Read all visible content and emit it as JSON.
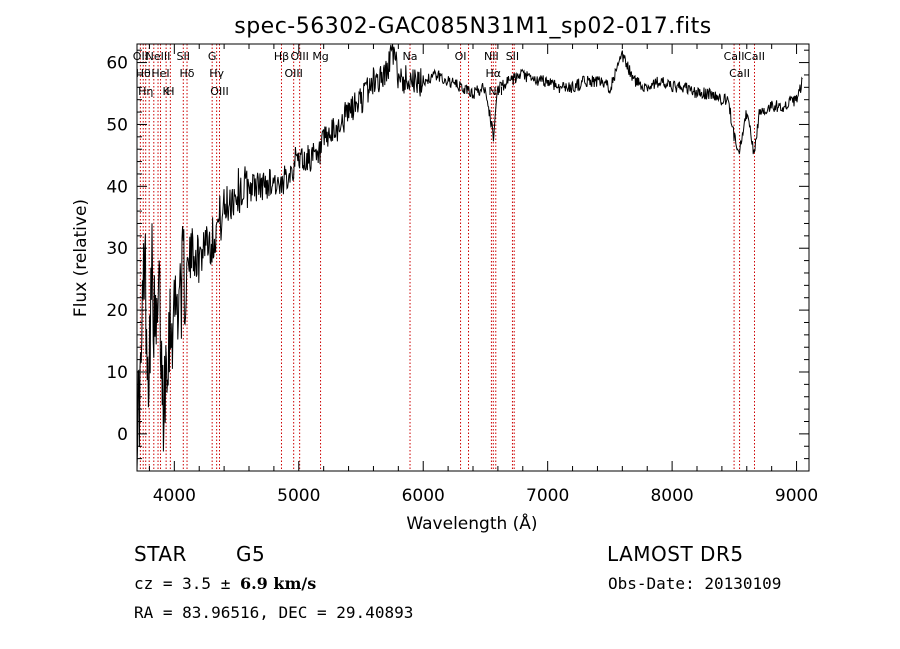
{
  "chart_data": {
    "type": "line",
    "title": "spec-56302-GAC085N31M1_sp02-017.fits",
    "xlabel": "Wavelength (Å)",
    "ylabel": "Flux (relative)",
    "xlim": [
      3700,
      9100
    ],
    "ylim": [
      -6,
      63
    ],
    "xticks": [
      4000,
      5000,
      6000,
      7000,
      8000,
      9000
    ],
    "yticks": [
      0,
      10,
      20,
      30,
      40,
      50,
      60
    ],
    "line_color": "#000000",
    "marker_color": "#cc0000",
    "series": [
      {
        "x": [
          3700,
          3730,
          3760,
          3790,
          3820,
          3850,
          3880,
          3910,
          3940,
          3970,
          4000,
          4050,
          4100,
          4150,
          4200,
          4250,
          4300,
          4350,
          4400,
          4450,
          4500,
          4600,
          4700,
          4800,
          4861,
          4900,
          4950,
          5000,
          5050,
          5100,
          5150,
          5200,
          5250,
          5300,
          5400,
          5500,
          5600,
          5700,
          5750,
          5800,
          5850,
          5900,
          5950,
          6000,
          6100,
          6200,
          6300,
          6400,
          6500,
          6563,
          6600,
          6700,
          6800,
          6900,
          7000,
          7100,
          7200,
          7300,
          7400,
          7500,
          7600,
          7700,
          7800,
          7900,
          8000,
          8100,
          8200,
          8300,
          8400,
          8450,
          8498,
          8542,
          8600,
          8662,
          8700,
          8800,
          8900,
          9000,
          9050
        ],
        "y": [
          2,
          8,
          30,
          10,
          26,
          14,
          22,
          4,
          15,
          18,
          20,
          24,
          26,
          30,
          28,
          32,
          31,
          34,
          36,
          38,
          39,
          40,
          40,
          41,
          39,
          42,
          43,
          45,
          44,
          45,
          44,
          47,
          48,
          49,
          52,
          54,
          57,
          58,
          62,
          58,
          57,
          58,
          56,
          57,
          58,
          57,
          56,
          55,
          56,
          48,
          56,
          57,
          58,
          57,
          57,
          56,
          56,
          57,
          57,
          56,
          61,
          57,
          56,
          57,
          56,
          56,
          55,
          55,
          54,
          54,
          48,
          46,
          52,
          45,
          52,
          53,
          53,
          54,
          57
        ]
      }
    ],
    "lines": [
      {
        "x": 3727,
        "labels": [
          "OII"
        ]
      },
      {
        "x": 3750,
        "labels": [
          "Hθ"
        ]
      },
      {
        "x": 3770,
        "labels": [
          "Hη"
        ]
      },
      {
        "x": 3798,
        "labels": [
          ""
        ]
      },
      {
        "x": 3835,
        "labels": [
          ""
        ]
      },
      {
        "x": 3869,
        "labels": [
          "NeIII"
        ]
      },
      {
        "x": 3889,
        "labels": [
          "HeI"
        ]
      },
      {
        "x": 3934,
        "labels": [
          "K"
        ]
      },
      {
        "x": 3968,
        "labels": [
          "H"
        ]
      },
      {
        "x": 4072,
        "labels": [
          "SII"
        ]
      },
      {
        "x": 4102,
        "labels": [
          "Hδ"
        ]
      },
      {
        "x": 4304,
        "labels": [
          "G"
        ]
      },
      {
        "x": 4340,
        "labels": [
          "Hγ"
        ]
      },
      {
        "x": 4363,
        "labels": [
          "OIII"
        ]
      },
      {
        "x": 4861,
        "labels": [
          "Hβ"
        ]
      },
      {
        "x": 4959,
        "labels": [
          "OIII"
        ]
      },
      {
        "x": 5007,
        "labels": [
          "OIII"
        ]
      },
      {
        "x": 5175,
        "labels": [
          "Mg"
        ]
      },
      {
        "x": 5894,
        "labels": [
          "Na"
        ]
      },
      {
        "x": 6300,
        "labels": [
          "OI"
        ]
      },
      {
        "x": 6364,
        "labels": [
          ""
        ]
      },
      {
        "x": 6548,
        "labels": [
          "NII"
        ]
      },
      {
        "x": 6563,
        "labels": [
          "Hα"
        ]
      },
      {
        "x": 6583,
        "labels": [
          "NII"
        ]
      },
      {
        "x": 6717,
        "labels": [
          "SII"
        ]
      },
      {
        "x": 6731,
        "labels": [
          ""
        ]
      },
      {
        "x": 8498,
        "labels": [
          "CaII"
        ]
      },
      {
        "x": 8542,
        "labels": [
          "CaII"
        ]
      },
      {
        "x": 8662,
        "labels": [
          "CaII"
        ]
      }
    ]
  },
  "footer": {
    "object_class": "STAR",
    "subclass": "G5",
    "survey": "LAMOST  DR5",
    "cz_text": "cz = 3.5 ± ",
    "cz_err": "6.9 km/s",
    "obs_date": "Obs-Date: 20130109",
    "radec": "RA =  83.96516, DEC =  29.40893"
  }
}
